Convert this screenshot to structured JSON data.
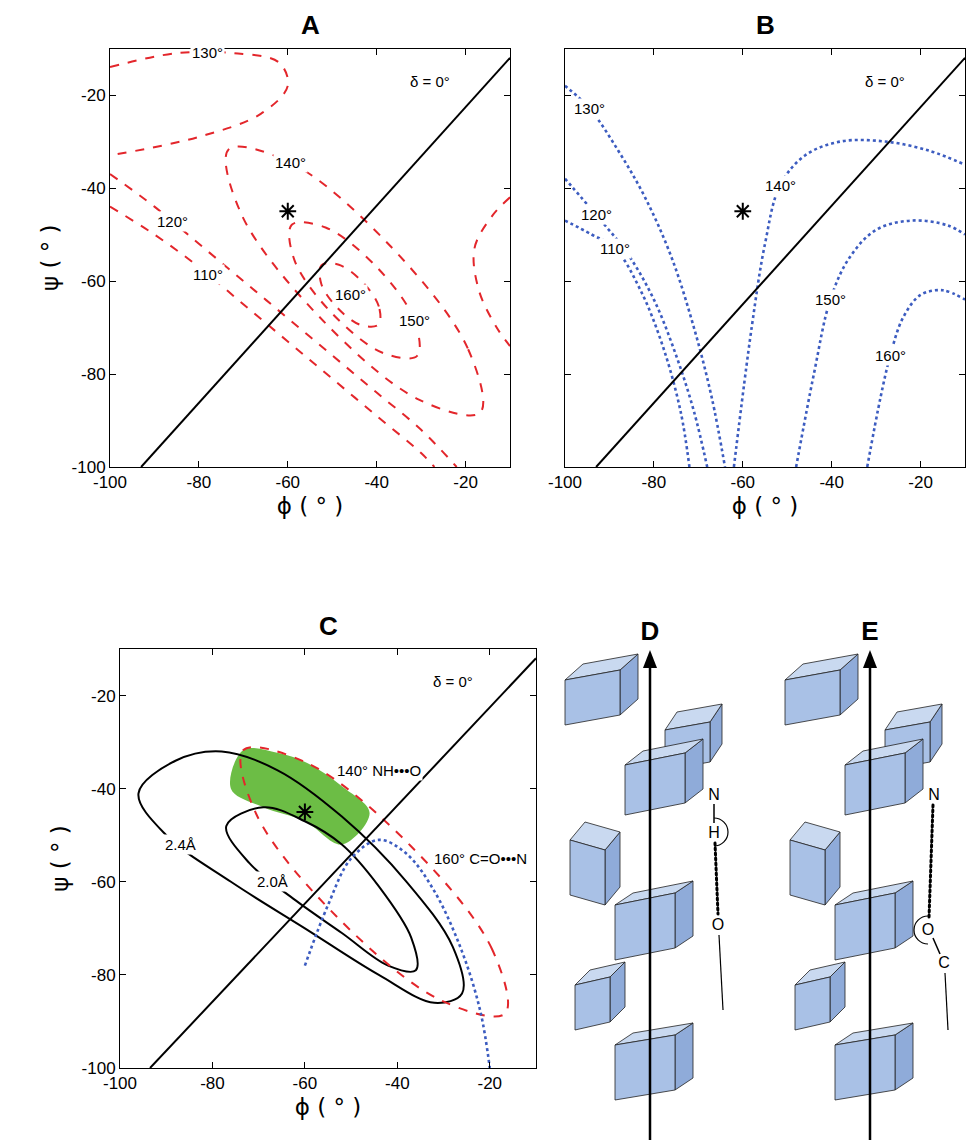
{
  "chart_data": [
    {
      "type": "contour_lines",
      "title": "A",
      "xlabel": "ϕ ( ° )",
      "ylabel": "ψ ( ° )",
      "xlim": [
        -100,
        -10
      ],
      "ylim": [
        -100,
        -10
      ],
      "xticks": [
        -100,
        -80,
        -60,
        -40,
        -20
      ],
      "yticks": [
        -100,
        -80,
        -60,
        -40,
        -20
      ],
      "grid": false,
      "series": [
        {
          "name": "110°",
          "type": "line",
          "color": "#e3262b",
          "line_style": "dashed",
          "x": [
            -100,
            -90,
            -80,
            -70,
            -60,
            -50,
            -40,
            -30,
            -27
          ],
          "y": [
            -44,
            -50,
            -57,
            -65,
            -73,
            -81,
            -89,
            -97,
            -100
          ],
          "label_xy": [
            -78,
            -58.6
          ]
        },
        {
          "name": "120°",
          "type": "line",
          "color": "#e3262b",
          "line_style": "dashed",
          "x": [
            -100,
            -90,
            -80,
            -70,
            -60,
            -50,
            -40,
            -30,
            -22
          ],
          "y": [
            -37,
            -44,
            -52,
            -60,
            -68,
            -76,
            -84,
            -92,
            -100
          ],
          "label_xy": [
            -86,
            -47.2
          ]
        },
        {
          "name": "130°",
          "type": "line",
          "color": "#e3262b",
          "line_style": "dashed",
          "x": [
            -100,
            -85,
            -72,
            -62,
            -60,
            -66,
            -80,
            -100,
            null,
            -10,
            -14,
            -18,
            -17,
            -13,
            -10
          ],
          "y": [
            -14,
            -11,
            -11,
            -13,
            -18,
            -24,
            -29,
            -33,
            null,
            -42,
            -46,
            -53,
            -62,
            -70,
            -74
          ],
          "label_xy": [
            -78,
            -10.9
          ]
        },
        {
          "name": "140°",
          "type": "line",
          "color": "#e3262b",
          "line_style": "dashed",
          "x": [
            -16.7,
            -19.5,
            -37.2,
            -59.5,
            -73.3,
            -70.5,
            -52.8,
            -30.5,
            -16.7
          ],
          "y": [
            -88.3,
            -74.5,
            -52.2,
            -34.5,
            -31.7,
            -45.5,
            -67.8,
            -85.5,
            -88.3
          ],
          "label_xy": [
            -59.5,
            -34.5
          ]
        },
        {
          "name": "150°",
          "type": "line",
          "color": "#e3262b",
          "line_style": "dashed",
          "x": [
            -30.9,
            -31.5,
            -40,
            -51.5,
            -59.1,
            -58.5,
            -50,
            -38.5,
            -30.9
          ],
          "y": [
            -76.1,
            -68.5,
            -57,
            -48.5,
            -47.9,
            -55.5,
            -67,
            -75.5,
            -76.1
          ],
          "label_xy": [
            -31.5,
            -68.5
          ]
        },
        {
          "name": "160°",
          "type": "line",
          "color": "#e3262b",
          "line_style": "dashed",
          "x": [
            -39.6,
            -39.5,
            -43.2,
            -48.5,
            -52.4,
            -52.5,
            -48.8,
            -43.5,
            -39.6
          ],
          "y": [
            -69.4,
            -65.5,
            -60.2,
            -56.5,
            -56.6,
            -60.5,
            -65.8,
            -69.5,
            -69.4
          ],
          "label_xy": [
            -46,
            -63
          ]
        },
        {
          "name": "δ = 0°",
          "type": "line",
          "color": "#000000",
          "line_style": "solid",
          "x": [
            -93,
            -10
          ],
          "y": [
            -100,
            -12
          ],
          "label_xy": [
            -28,
            -17
          ]
        },
        {
          "type": "scatter",
          "color": "#000000",
          "marker": "asterisk",
          "x": [
            -60
          ],
          "y": [
            -45
          ]
        }
      ]
    },
    {
      "type": "contour_lines",
      "title": "B",
      "xlabel": "ϕ ( ° )",
      "xlim": [
        -100,
        -10
      ],
      "ylim": [
        -100,
        -10
      ],
      "xticks": [
        -100,
        -80,
        -60,
        -40,
        -20
      ],
      "yticks": [
        -100,
        -80,
        -60,
        -40,
        -20
      ],
      "grid": false,
      "tick_labels": "x",
      "series": [
        {
          "name": "110°",
          "type": "line",
          "color": "#3c5cc0",
          "line_style": "dotted",
          "x": [
            -100,
            -94,
            -88.7,
            -83,
            -78,
            -74,
            -72
          ],
          "y": [
            -47,
            -50,
            -53,
            -62,
            -74,
            -88,
            -100
          ],
          "label_xy": [
            -88.7,
            -53
          ]
        },
        {
          "name": "120°",
          "type": "line",
          "color": "#3c5cc0",
          "line_style": "dotted",
          "x": [
            -100,
            -93,
            -86,
            -80,
            -75,
            -71,
            -68
          ],
          "y": [
            -38,
            -45.8,
            -54,
            -64,
            -76,
            -88,
            -100
          ],
          "label_xy": [
            -93,
            -45.8
          ]
        },
        {
          "name": "130°",
          "type": "line",
          "color": "#3c5cc0",
          "line_style": "dotted",
          "x": [
            -100,
            -94.4,
            -88,
            -82,
            -76,
            -71,
            -67,
            -64
          ],
          "y": [
            -18,
            -23,
            -32,
            -42,
            -55,
            -70,
            -85,
            -100
          ],
          "label_xy": [
            -94.4,
            -23
          ]
        },
        {
          "name": "140°",
          "type": "line",
          "color": "#3c5cc0",
          "line_style": "dotted",
          "x": [
            -62,
            -58,
            -55,
            -51.6,
            -46,
            -38,
            -28,
            -18,
            -10
          ],
          "y": [
            -100,
            -70,
            -52,
            -39.4,
            -33,
            -30,
            -30,
            -32,
            -35
          ],
          "label_xy": [
            -51.6,
            -39.4
          ]
        },
        {
          "name": "150°",
          "type": "line",
          "color": "#3c5cc0",
          "line_style": "dotted",
          "x": [
            -48,
            -44,
            -40.3,
            -36,
            -30,
            -22,
            -14,
            -10
          ],
          "y": [
            -100,
            -80,
            -64,
            -55,
            -49,
            -47,
            -48,
            -50
          ],
          "label_xy": [
            -40.3,
            -64
          ]
        },
        {
          "name": "160°",
          "type": "line",
          "color": "#3c5cc0",
          "line_style": "dotted",
          "x": [
            -32,
            -29,
            -26.8,
            -24,
            -20,
            -15,
            -10
          ],
          "y": [
            -100,
            -85,
            -76,
            -68,
            -63,
            -62,
            -64
          ],
          "label_xy": [
            -26.8,
            -76
          ]
        },
        {
          "name": "δ = 0°",
          "type": "line",
          "color": "#000000",
          "line_style": "solid",
          "x": [
            -93,
            -10
          ],
          "y": [
            -100,
            -12
          ],
          "label_xy": [
            -28,
            -17
          ]
        },
        {
          "type": "scatter",
          "color": "#000000",
          "marker": "asterisk",
          "x": [
            -60
          ],
          "y": [
            -45
          ]
        }
      ]
    },
    {
      "type": "contour_lines",
      "title": "C",
      "xlabel": "ϕ ( ° )",
      "ylabel": "ψ ( ° )",
      "xlim": [
        -100,
        -10
      ],
      "ylim": [
        -100,
        -10
      ],
      "xticks": [
        -100,
        -80,
        -60,
        -40,
        -20
      ],
      "yticks": [
        -100,
        -80,
        -60,
        -40,
        -20
      ],
      "grid": false,
      "series": [
        {
          "type": "area",
          "color": "#6cbd45",
          "x": [
            -76,
            -73.3,
            -66,
            -59.5,
            -52,
            -46,
            -52,
            -60,
            -69,
            -76
          ],
          "y": [
            -40,
            -31.7,
            -32.3,
            -34.5,
            -39.5,
            -45.2,
            -52,
            -47,
            -44,
            -40
          ]
        },
        {
          "name": "2.4Å",
          "type": "line",
          "color": "#000000",
          "line_style": "solid",
          "x": [
            -96,
            -88,
            -78,
            -66,
            -52,
            -38,
            -28,
            -26,
            -32,
            -44,
            -60,
            -76,
            -90,
            -96
          ],
          "y": [
            -41,
            -34,
            -32,
            -36,
            -46,
            -60,
            -74,
            -84,
            -86,
            -80,
            -70,
            -60,
            -50,
            -41
          ],
          "label_xy": [
            -87,
            -52
          ]
        },
        {
          "name": "2.0Å",
          "type": "line",
          "color": "#000000",
          "line_style": "solid",
          "x": [
            -77,
            -69,
            -60,
            -52,
            -44,
            -37,
            -36,
            -42,
            -52,
            -62,
            -72,
            -77
          ],
          "y": [
            -48,
            -44,
            -47,
            -52,
            -61,
            -72,
            -79,
            -78,
            -71,
            -64,
            -56,
            -48
          ],
          "label_xy": [
            -67,
            -60
          ]
        },
        {
          "name": "140° NH•••O",
          "type": "line",
          "color": "#e3262b",
          "line_style": "dashed",
          "x": [
            -16.7,
            -19.5,
            -37.2,
            -59.5,
            -73.3,
            -70.5,
            -52.8,
            -30.5,
            -16.7
          ],
          "y": [
            -88.3,
            -74.5,
            -52.2,
            -34.5,
            -31.7,
            -45.5,
            -67.8,
            -85.5,
            -88.3
          ],
          "label_xy": [
            -44,
            -36
          ]
        },
        {
          "name": "160° C=O•••N",
          "type": "line",
          "color": "#3c5cc0",
          "line_style": "dotted",
          "x": [
            -60,
            -55,
            -50,
            -44,
            -38,
            -32,
            -26,
            -22,
            -20
          ],
          "y": [
            -78,
            -65,
            -55,
            -51,
            -54,
            -62,
            -75,
            -88,
            -100
          ],
          "label_xy": [
            -22,
            -55
          ]
        },
        {
          "name": "δ = 0°",
          "type": "line",
          "color": "#000000",
          "line_style": "solid",
          "x": [
            -93.5,
            -10
          ],
          "y": [
            -100,
            -12
          ],
          "label_xy": [
            -28,
            -17
          ]
        },
        {
          "type": "scatter",
          "color": "#000000",
          "marker": "asterisk",
          "x": [
            -60
          ],
          "y": [
            -45
          ]
        }
      ]
    }
  ],
  "diagrams": [
    {
      "label": "D",
      "atoms": [
        "N",
        "H",
        "O"
      ]
    },
    {
      "label": "E",
      "atoms": [
        "N",
        "O",
        "C"
      ]
    }
  ]
}
